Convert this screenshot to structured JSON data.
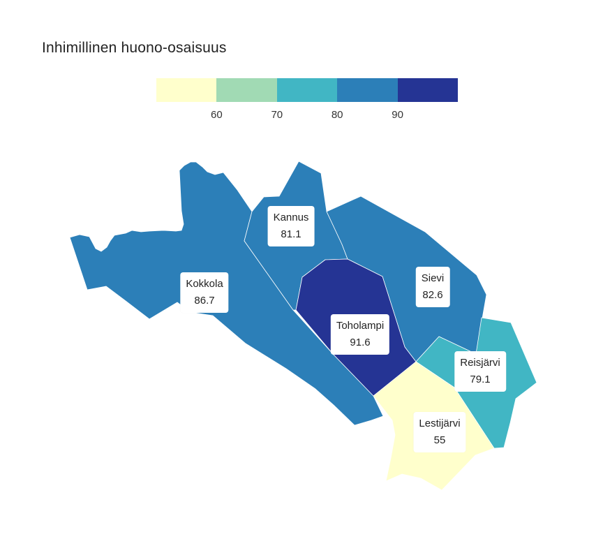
{
  "title": "Inhimillinen huono-osaisuus",
  "legend": {
    "bins": [
      {
        "color": "#ffffcc"
      },
      {
        "color": "#a1dab4"
      },
      {
        "color": "#41b6c4"
      },
      {
        "color": "#2c7fb8"
      },
      {
        "color": "#253494"
      }
    ],
    "ticks": [
      "60",
      "70",
      "80",
      "90"
    ]
  },
  "municipalities": [
    {
      "name": "Kokkola",
      "value": "86.7",
      "color": "#2c7fb8"
    },
    {
      "name": "Kannus",
      "value": "81.1",
      "color": "#2c7fb8"
    },
    {
      "name": "Sievi",
      "value": "82.6",
      "color": "#2c7fb8"
    },
    {
      "name": "Toholampi",
      "value": "91.6",
      "color": "#253494"
    },
    {
      "name": "Reisjärvi",
      "value": "79.1",
      "color": "#41b6c4"
    },
    {
      "name": "Lestijärvi",
      "value": "55",
      "color": "#ffffcc"
    }
  ]
}
